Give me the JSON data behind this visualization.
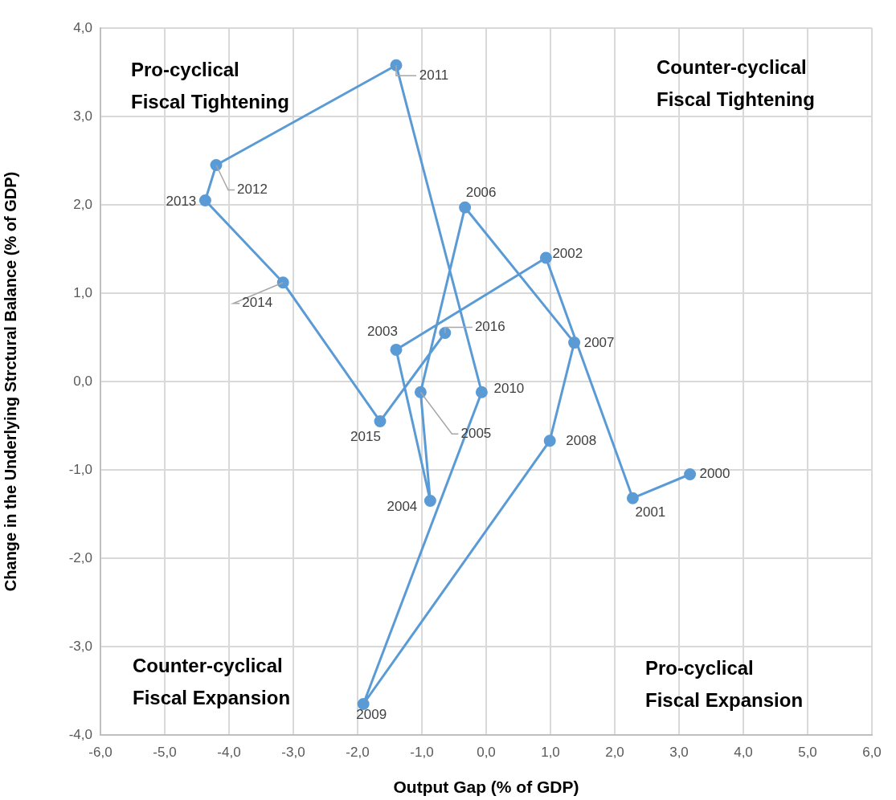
{
  "chart_data": {
    "type": "line",
    "xlabel": "Output Gap (% of GDP)",
    "ylabel": "Change in the Underlying Strctural Balance (% of GDP)",
    "x": [
      3.17,
      2.28,
      0.93,
      -1.4,
      -0.87,
      -1.02,
      -0.33,
      1.37,
      0.99,
      -1.91,
      -0.07,
      -1.4,
      -4.2,
      -4.37,
      -3.16,
      -1.65,
      -0.64
    ],
    "series": [
      {
        "color": "#5b9bd5",
        "values": [
          -1.05,
          -1.32,
          1.4,
          0.36,
          -1.35,
          -0.12,
          1.97,
          0.44,
          -0.67,
          -3.65,
          -0.12,
          3.58,
          2.45,
          2.05,
          1.12,
          -0.45,
          0.55
        ]
      }
    ],
    "xlim": [
      -6,
      6
    ],
    "ylim": [
      -4,
      4
    ],
    "xticks": [
      {
        "value": -6,
        "label": "-6,0"
      },
      {
        "value": -5,
        "label": "-5,0"
      },
      {
        "value": -4,
        "label": "-4,0"
      },
      {
        "value": -3,
        "label": "-3,0"
      },
      {
        "value": -2,
        "label": "-2,0"
      },
      {
        "value": -1,
        "label": "-1,0"
      },
      {
        "value": 0,
        "label": "0,0"
      },
      {
        "value": 1,
        "label": "1,0"
      },
      {
        "value": 2,
        "label": "2,0"
      },
      {
        "value": 3,
        "label": "3,0"
      },
      {
        "value": 4,
        "label": "4,0"
      },
      {
        "value": 5,
        "label": "5,0"
      },
      {
        "value": 6,
        "label": "6,0"
      }
    ],
    "yticks": [
      {
        "value": -4,
        "label": "-4,0"
      },
      {
        "value": -3,
        "label": "-3,0"
      },
      {
        "value": -2,
        "label": "-2,0"
      },
      {
        "value": -1,
        "label": "-1,0"
      },
      {
        "value": 0,
        "label": "0,0"
      },
      {
        "value": 1,
        "label": "1,0"
      },
      {
        "value": 2,
        "label": "2,0"
      },
      {
        "value": 3,
        "label": "3,0"
      },
      {
        "value": 4,
        "label": "4,0"
      }
    ],
    "grid": true,
    "marker": "circle",
    "line_style": "solid",
    "legend": false,
    "annotations": [
      "Pro-cyclical Fiscal Tightening",
      "Counter-cyclical Fiscal Tightening",
      "Counter-cyclical Fiscal Expansion",
      "Pro-cyclical Fiscal Expansion",
      {
        "text": "2000",
        "x": 3.17,
        "y": -1.05
      },
      {
        "text": "2001",
        "x": 2.28,
        "y": -1.32
      },
      {
        "text": "2002",
        "x": 0.93,
        "y": 1.4
      },
      {
        "text": "2003",
        "x": -1.4,
        "y": 0.36
      },
      {
        "text": "2004",
        "x": -0.87,
        "y": -1.35
      },
      {
        "text": "2005",
        "x": -1.02,
        "y": -0.12
      },
      {
        "text": "2006",
        "x": -0.33,
        "y": 1.97
      },
      {
        "text": "2007",
        "x": 1.37,
        "y": 0.44
      },
      {
        "text": "2008",
        "x": 0.99,
        "y": -0.67
      },
      {
        "text": "2009",
        "x": -1.91,
        "y": -3.65
      },
      {
        "text": "2010",
        "x": -0.07,
        "y": -0.12
      },
      {
        "text": "2011",
        "x": -1.4,
        "y": 3.58
      },
      {
        "text": "2012",
        "x": -4.2,
        "y": 2.45
      },
      {
        "text": "2013",
        "x": -4.37,
        "y": 2.05
      },
      {
        "text": "2014",
        "x": -3.16,
        "y": 1.12
      },
      {
        "text": "2015",
        "x": -1.65,
        "y": -0.45
      },
      {
        "text": "2016",
        "x": -0.64,
        "y": 0.55
      }
    ]
  }
}
